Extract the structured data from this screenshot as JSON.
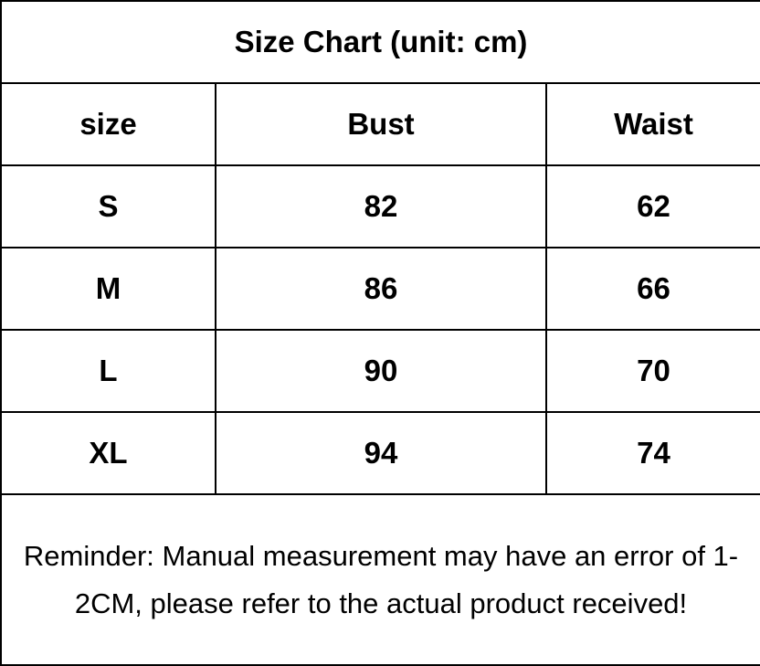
{
  "title": "Size Chart (unit: cm)",
  "headers": [
    "size",
    "Bust",
    "Waist"
  ],
  "rows": [
    [
      "S",
      "82",
      "62"
    ],
    [
      "M",
      "86",
      "66"
    ],
    [
      "L",
      "90",
      "70"
    ],
    [
      "XL",
      "94",
      "74"
    ]
  ],
  "reminder": "Reminder: Manual measurement may have an error of 1-2CM, please refer to the actual product received!"
}
